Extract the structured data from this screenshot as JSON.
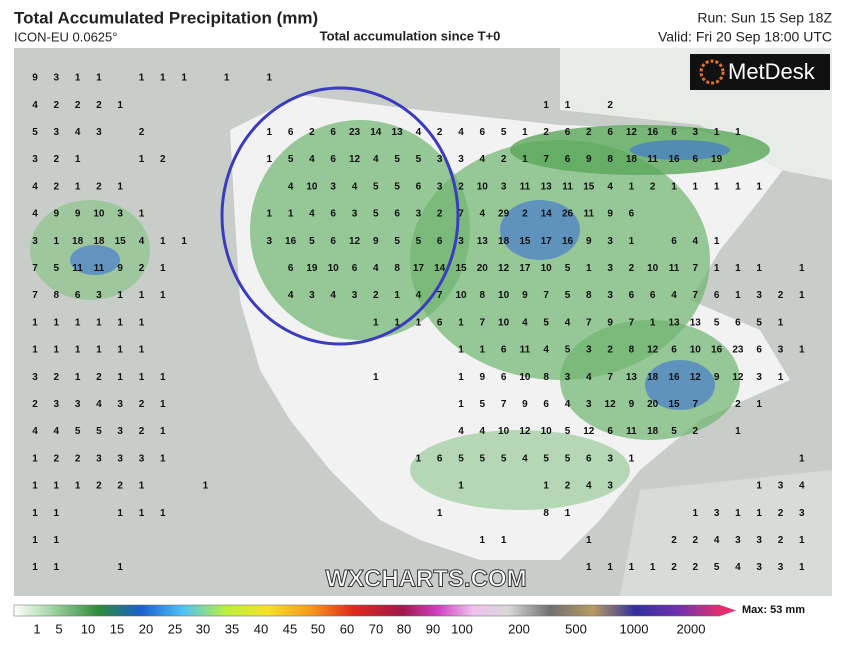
{
  "header": {
    "title": "Total Accumulated Precipitation (mm)",
    "model": "ICON-EU 0.0625°",
    "subtitle": "Total accumulation since T+0",
    "run": "Run: Sun 15 Sep 18Z",
    "valid": "Valid: Fri 20 Sep 18:00 UTC"
  },
  "logo": "MetDesk",
  "watermark": "WXCHARTS.COM",
  "grid_values": [
    [
      9,
      3,
      1,
      1,
      null,
      1,
      1,
      1,
      null,
      1,
      null,
      1,
      null,
      null,
      null,
      null,
      null,
      null,
      null,
      null,
      null,
      null,
      null,
      null,
      null,
      null,
      null,
      null,
      null,
      null,
      null,
      null,
      null,
      null,
      null,
      null,
      null
    ],
    [
      4,
      2,
      2,
      2,
      1,
      null,
      null,
      null,
      null,
      null,
      null,
      null,
      null,
      null,
      null,
      null,
      null,
      null,
      null,
      null,
      null,
      null,
      null,
      null,
      1,
      1,
      null,
      2,
      null,
      null,
      null,
      null,
      null,
      null,
      null,
      null,
      null
    ],
    [
      5,
      3,
      4,
      3,
      null,
      2,
      null,
      null,
      null,
      null,
      null,
      1,
      6,
      2,
      6,
      23,
      14,
      13,
      4,
      2,
      4,
      6,
      5,
      1,
      2,
      6,
      2,
      6,
      12,
      16,
      6,
      3,
      1,
      1,
      null,
      null,
      null
    ],
    [
      3,
      2,
      1,
      null,
      null,
      1,
      2,
      null,
      null,
      null,
      null,
      1,
      5,
      4,
      6,
      12,
      4,
      5,
      5,
      3,
      3,
      4,
      2,
      1,
      7,
      6,
      9,
      8,
      18,
      11,
      16,
      6,
      19,
      null,
      null,
      null,
      null
    ],
    [
      4,
      2,
      1,
      2,
      1,
      null,
      null,
      null,
      null,
      null,
      null,
      null,
      4,
      10,
      3,
      4,
      5,
      5,
      6,
      3,
      2,
      10,
      3,
      11,
      13,
      11,
      15,
      4,
      1,
      2,
      1,
      1,
      1,
      1,
      1,
      null,
      null
    ],
    [
      4,
      9,
      9,
      10,
      3,
      1,
      null,
      null,
      null,
      null,
      null,
      1,
      1,
      4,
      6,
      3,
      5,
      6,
      3,
      2,
      7,
      4,
      29,
      2,
      14,
      26,
      11,
      9,
      6,
      null,
      null,
      null,
      null,
      null,
      null,
      null,
      null
    ],
    [
      3,
      1,
      18,
      18,
      15,
      4,
      1,
      1,
      null,
      null,
      null,
      3,
      16,
      5,
      6,
      12,
      9,
      5,
      5,
      6,
      3,
      13,
      18,
      15,
      17,
      16,
      9,
      3,
      1,
      null,
      6,
      4,
      1,
      null,
      null,
      null,
      null
    ],
    [
      7,
      5,
      11,
      11,
      9,
      2,
      1,
      null,
      null,
      null,
      null,
      null,
      6,
      19,
      10,
      6,
      4,
      8,
      17,
      14,
      15,
      20,
      12,
      17,
      10,
      5,
      1,
      3,
      2,
      10,
      11,
      7,
      1,
      1,
      1,
      null,
      1
    ],
    [
      7,
      8,
      6,
      3,
      1,
      1,
      1,
      null,
      null,
      null,
      null,
      null,
      4,
      3,
      4,
      3,
      2,
      1,
      4,
      7,
      10,
      8,
      10,
      9,
      7,
      5,
      8,
      3,
      6,
      6,
      4,
      7,
      6,
      1,
      3,
      2,
      1
    ],
    [
      1,
      1,
      1,
      1,
      1,
      1,
      null,
      null,
      null,
      null,
      null,
      null,
      null,
      null,
      null,
      null,
      1,
      1,
      1,
      6,
      1,
      7,
      10,
      4,
      5,
      4,
      7,
      9,
      7,
      1,
      13,
      13,
      5,
      6,
      5,
      1,
      null
    ],
    [
      1,
      1,
      1,
      1,
      1,
      1,
      null,
      null,
      null,
      null,
      null,
      null,
      null,
      null,
      null,
      null,
      null,
      null,
      null,
      null,
      1,
      1,
      6,
      11,
      4,
      5,
      3,
      2,
      8,
      12,
      6,
      10,
      16,
      23,
      6,
      3,
      1
    ],
    [
      3,
      2,
      1,
      2,
      1,
      1,
      1,
      null,
      null,
      null,
      null,
      null,
      null,
      null,
      null,
      null,
      1,
      null,
      null,
      null,
      1,
      9,
      6,
      10,
      8,
      3,
      4,
      7,
      13,
      18,
      16,
      12,
      9,
      12,
      3,
      1,
      null
    ],
    [
      2,
      3,
      3,
      4,
      3,
      2,
      1,
      null,
      null,
      null,
      null,
      null,
      null,
      null,
      null,
      null,
      null,
      null,
      null,
      null,
      1,
      5,
      7,
      9,
      6,
      4,
      3,
      12,
      9,
      20,
      15,
      7,
      null,
      2,
      1,
      null,
      null
    ],
    [
      4,
      4,
      5,
      5,
      3,
      2,
      1,
      null,
      null,
      null,
      null,
      null,
      null,
      null,
      null,
      null,
      null,
      null,
      null,
      null,
      4,
      4,
      10,
      12,
      10,
      5,
      12,
      6,
      11,
      18,
      5,
      2,
      null,
      1,
      null,
      null,
      null
    ],
    [
      1,
      2,
      2,
      3,
      3,
      3,
      1,
      null,
      null,
      null,
      null,
      null,
      null,
      null,
      null,
      null,
      null,
      null,
      1,
      6,
      5,
      5,
      5,
      4,
      5,
      5,
      6,
      3,
      1,
      null,
      null,
      null,
      null,
      null,
      null,
      null,
      1
    ],
    [
      1,
      1,
      1,
      2,
      2,
      1,
      null,
      null,
      1,
      null,
      null,
      null,
      null,
      null,
      null,
      null,
      null,
      null,
      null,
      null,
      1,
      null,
      null,
      null,
      1,
      2,
      4,
      3,
      null,
      null,
      null,
      null,
      null,
      null,
      1,
      3,
      4
    ],
    [
      1,
      1,
      null,
      null,
      1,
      1,
      1,
      null,
      null,
      null,
      null,
      null,
      null,
      null,
      null,
      null,
      null,
      null,
      null,
      1,
      null,
      null,
      null,
      null,
      8,
      1,
      null,
      null,
      null,
      null,
      null,
      1,
      3,
      1,
      1,
      2,
      3
    ],
    [
      1,
      1,
      null,
      null,
      null,
      null,
      null,
      null,
      null,
      null,
      null,
      null,
      null,
      null,
      null,
      null,
      null,
      null,
      null,
      null,
      null,
      1,
      1,
      null,
      null,
      null,
      1,
      null,
      null,
      null,
      2,
      2,
      4,
      3,
      3,
      2,
      1
    ],
    [
      1,
      1,
      null,
      null,
      1,
      null,
      null,
      null,
      null,
      null,
      null,
      null,
      null,
      null,
      null,
      null,
      null,
      null,
      null,
      null,
      null,
      null,
      null,
      null,
      null,
      null,
      1,
      1,
      1,
      1,
      2,
      2,
      5,
      4,
      3,
      3,
      1
    ]
  ],
  "colorbar": {
    "ticks": [
      1,
      5,
      10,
      15,
      20,
      25,
      30,
      35,
      40,
      45,
      50,
      60,
      70,
      80,
      90,
      100,
      200,
      500,
      1000,
      2000
    ],
    "max_label": "Max: 53 mm"
  }
}
